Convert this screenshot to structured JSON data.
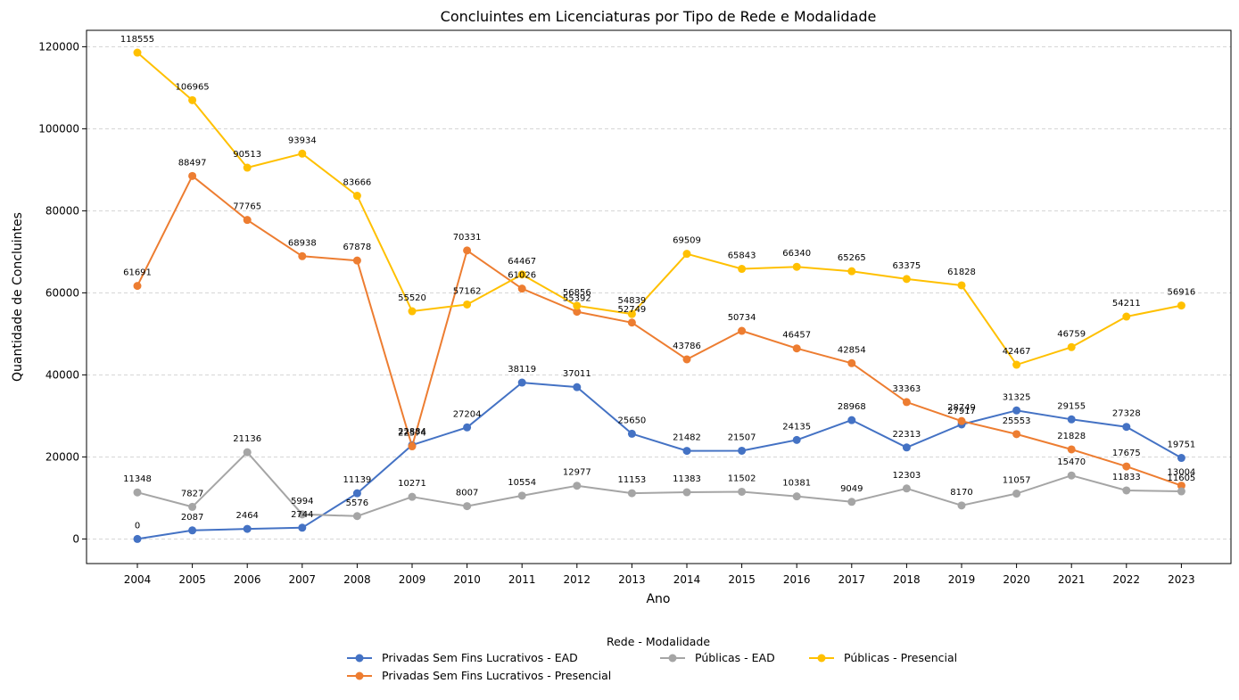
{
  "chart_data": {
    "type": "line",
    "title": "Concluintes em Licenciaturas por Tipo de Rede e Modalidade",
    "xlabel": "Ano",
    "ylabel": "Quantidade de Concluintes",
    "legend_title": "Rede - Modalidade",
    "legend_position": "bottom-center",
    "grid": "y-dashed",
    "ylim": [
      -6000,
      124000
    ],
    "yticks": [
      0,
      20000,
      40000,
      60000,
      80000,
      100000,
      120000
    ],
    "x": [
      "2004",
      "2005",
      "2006",
      "2007",
      "2008",
      "2009",
      "2010",
      "2011",
      "2012",
      "2013",
      "2014",
      "2015",
      "2016",
      "2017",
      "2018",
      "2019",
      "2020",
      "2021",
      "2022",
      "2023"
    ],
    "series": [
      {
        "name": "Privadas Sem Fins Lucrativos - EAD",
        "color": "#4472c4",
        "values": [
          0,
          2087,
          2464,
          2744,
          11139,
          22884,
          27204,
          38119,
          37011,
          25650,
          21482,
          21507,
          24135,
          28968,
          22313,
          27917,
          31325,
          29155,
          27328,
          19751
        ]
      },
      {
        "name": "Privadas Sem Fins Lucrativos - Presencial",
        "color": "#ed7d31",
        "values": [
          61691,
          88497,
          77765,
          68938,
          67878,
          22574,
          70331,
          61026,
          55392,
          52749,
          43786,
          50734,
          46457,
          42854,
          33363,
          28749,
          25553,
          21828,
          17675,
          13004
        ]
      },
      {
        "name": "Públicas - EAD",
        "color": "#a5a5a5",
        "values": [
          11348,
          7827,
          21136,
          5994,
          5576,
          10271,
          8007,
          10554,
          12977,
          11153,
          11383,
          11502,
          10381,
          9049,
          12303,
          8170,
          11057,
          15470,
          11833,
          11605
        ]
      },
      {
        "name": "Públicas - Presencial",
        "color": "#ffc000",
        "values": [
          118555,
          106965,
          90513,
          93934,
          83666,
          55520,
          57162,
          64467,
          56856,
          54839,
          69509,
          65843,
          66340,
          65265,
          63375,
          61828,
          42467,
          46759,
          54211,
          56916
        ]
      }
    ]
  }
}
